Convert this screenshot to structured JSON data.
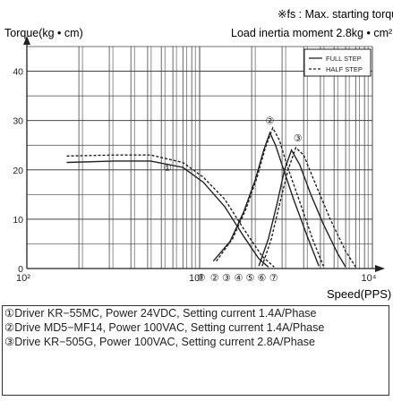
{
  "chart_data": {
    "type": "line",
    "note": "※fs : Max. starting torque",
    "title": "Load inertia moment 2.8kg • cm²",
    "ylabel": "Torque(kg • cm)",
    "xlabel": "Speed(PPS)",
    "xscale": "log",
    "xlim": [
      100,
      10000
    ],
    "ylim": [
      0,
      45
    ],
    "y_ticks": [
      0,
      10,
      20,
      30,
      40
    ],
    "x_ticks": [
      {
        "value": 100,
        "label": "10²"
      },
      {
        "value": 1000,
        "label": "10³"
      },
      {
        "value": 10000,
        "label": "10⁴"
      }
    ],
    "grid": true,
    "legend": "top-right",
    "legend_entries": [
      {
        "label": "FULL STEP",
        "style": "solid"
      },
      {
        "label": "HALF STEP",
        "style": "dashed"
      }
    ],
    "series": [
      {
        "marker": "①",
        "style": "solid",
        "points": [
          [
            170,
            21.5
          ],
          [
            320,
            21.8
          ],
          [
            520,
            21.8
          ],
          [
            800,
            20.5
          ],
          [
            1050,
            17.5
          ],
          [
            1400,
            12.5
          ],
          [
            1800,
            6.5
          ],
          [
            2200,
            2.0
          ],
          [
            2500,
            0.3
          ]
        ]
      },
      {
        "marker": "①",
        "style": "dashed",
        "points": [
          [
            170,
            22.8
          ],
          [
            320,
            23.0
          ],
          [
            520,
            23.0
          ],
          [
            800,
            21.5
          ],
          [
            1050,
            18.5
          ],
          [
            1400,
            14.0
          ],
          [
            1800,
            8.0
          ],
          [
            2300,
            2.5
          ],
          [
            2700,
            0.3
          ]
        ]
      },
      {
        "marker": "②",
        "style": "solid",
        "points": [
          [
            1200,
            1.5
          ],
          [
            1500,
            5.5
          ],
          [
            1800,
            11.5
          ],
          [
            2100,
            18.0
          ],
          [
            2350,
            24.0
          ],
          [
            2550,
            27.5
          ],
          [
            2750,
            25.0
          ],
          [
            3000,
            21.0
          ],
          [
            3500,
            14.0
          ],
          [
            4200,
            6.5
          ],
          [
            4900,
            0.5
          ]
        ]
      },
      {
        "marker": "②",
        "style": "dashed",
        "points": [
          [
            1250,
            1.5
          ],
          [
            1550,
            6.0
          ],
          [
            1850,
            12.0
          ],
          [
            2150,
            18.5
          ],
          [
            2400,
            24.5
          ],
          [
            2650,
            28.5
          ],
          [
            2900,
            26.0
          ],
          [
            3200,
            21.0
          ],
          [
            3800,
            13.5
          ],
          [
            4500,
            6.0
          ],
          [
            5200,
            0.5
          ]
        ]
      },
      {
        "marker": "③",
        "style": "solid",
        "points": [
          [
            2200,
            0.5
          ],
          [
            2500,
            6.0
          ],
          [
            2800,
            13.0
          ],
          [
            3100,
            20.0
          ],
          [
            3400,
            24.0
          ],
          [
            3800,
            21.0
          ],
          [
            4400,
            15.0
          ],
          [
            5200,
            9.0
          ],
          [
            6300,
            3.0
          ],
          [
            7000,
            0.3
          ]
        ]
      },
      {
        "marker": "③",
        "style": "dashed",
        "points": [
          [
            2300,
            0.5
          ],
          [
            2600,
            6.0
          ],
          [
            2900,
            13.0
          ],
          [
            3250,
            20.0
          ],
          [
            3600,
            24.5
          ],
          [
            4000,
            23.0
          ],
          [
            4700,
            17.0
          ],
          [
            5700,
            10.0
          ],
          [
            7000,
            3.5
          ],
          [
            8000,
            0.3
          ]
        ]
      }
    ],
    "curve_markers": [
      {
        "label": "①",
        "x": 650,
        "y": 20.5
      },
      {
        "label": "②",
        "x": 2550,
        "y": 30.0
      },
      {
        "label": "③",
        "x": 3700,
        "y": 26.5
      },
      {
        "label": "①",
        "x": 1020,
        "y": -1.8
      },
      {
        "label": "②",
        "x": 1220,
        "y": -1.8
      },
      {
        "label": "③",
        "x": 1430,
        "y": -1.8
      },
      {
        "label": "④",
        "x": 1680,
        "y": -1.8
      },
      {
        "label": "⑤",
        "x": 1960,
        "y": -1.8
      },
      {
        "label": "⑥",
        "x": 2290,
        "y": -1.8
      },
      {
        "label": "⑦",
        "x": 2680,
        "y": -1.8
      }
    ]
  },
  "footnotes": [
    "①Driver KR−55MC, Power 24VDC, Setting current 1.4A/Phase",
    "②Drive MD5−MF14, Power 100VAC, Setting current 1.4A/Phase",
    "③Drive KR−505G, Power 100VAC, Setting current 2.8A/Phase"
  ],
  "colors": {
    "grid": "#444444",
    "line": "#222222",
    "background": "#ffffff"
  }
}
